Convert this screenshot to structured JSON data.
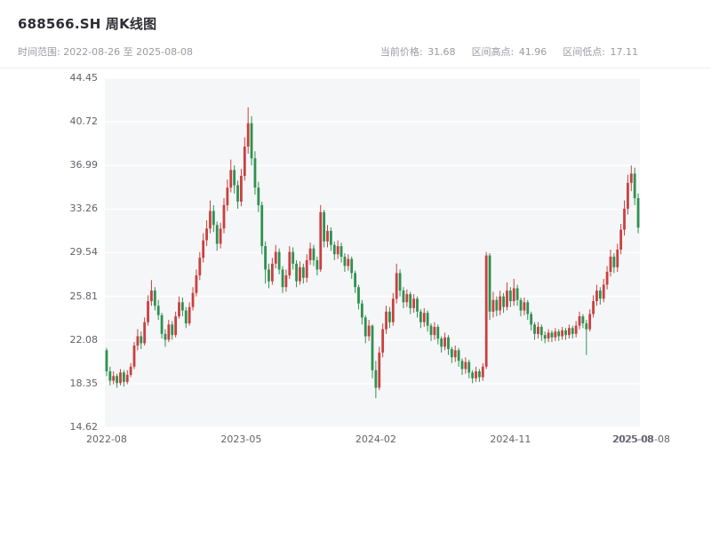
{
  "header": {
    "title": "688566.SH 周K线图",
    "subtitle": "时间范围: 2022-08-26 至 2025-08-08",
    "stats": [
      {
        "label": "当前价格:",
        "value": "31.68"
      },
      {
        "label": "区间高点:",
        "value": "41.96"
      },
      {
        "label": "区间低点:",
        "value": "17.11"
      }
    ]
  },
  "chart_data": {
    "type": "candlestick",
    "title": "688566.SH 周K线图",
    "period": "weekly",
    "date_range": {
      "start": "2022-08-26",
      "end": "2025-08-08"
    },
    "current_price": 31.68,
    "range_high": 41.96,
    "range_low": 17.11,
    "ylim": [
      14.62,
      44.45
    ],
    "y_ticks": [
      "44.45",
      "40.72",
      "36.99",
      "33.26",
      "29.54",
      "25.81",
      "22.08",
      "18.35",
      "14.62"
    ],
    "x_ticks": [
      {
        "pos": 0,
        "label": "2022-08"
      },
      {
        "pos": 39,
        "label": "2023-05"
      },
      {
        "pos": 78,
        "label": "2024-02"
      },
      {
        "pos": 117,
        "label": "2024-11"
      },
      {
        "pos": 156,
        "label": "2025-08"
      }
    ],
    "x_end_label": "2025-08-08",
    "grid": "horizontal",
    "legend": "none",
    "colors": {
      "up": "#c9403f",
      "down": "#2f9150",
      "plot_bg": "#f5f6f8",
      "grid": "#ffffff"
    },
    "candle_format": [
      "open",
      "high",
      "low",
      "close"
    ],
    "candles": [
      [
        21.2,
        21.4,
        19.0,
        19.4
      ],
      [
        19.4,
        19.8,
        18.2,
        18.6
      ],
      [
        18.6,
        19.4,
        18.3,
        19.0
      ],
      [
        19.0,
        19.2,
        18.0,
        18.4
      ],
      [
        18.4,
        19.6,
        18.2,
        19.3
      ],
      [
        19.3,
        19.5,
        18.1,
        18.5
      ],
      [
        18.5,
        19.5,
        18.3,
        19.1
      ],
      [
        19.1,
        20.1,
        18.9,
        19.8
      ],
      [
        19.8,
        21.9,
        19.6,
        21.6
      ],
      [
        21.6,
        23.0,
        21.2,
        22.4
      ],
      [
        22.4,
        22.8,
        21.3,
        21.8
      ],
      [
        21.8,
        24.0,
        21.6,
        23.6
      ],
      [
        23.6,
        25.9,
        23.3,
        25.4
      ],
      [
        25.4,
        27.2,
        25.0,
        26.3
      ],
      [
        26.3,
        26.6,
        24.6,
        25.0
      ],
      [
        25.0,
        25.5,
        23.8,
        24.2
      ],
      [
        24.2,
        24.4,
        22.2,
        22.6
      ],
      [
        22.6,
        23.0,
        21.5,
        22.1
      ],
      [
        22.1,
        23.8,
        21.9,
        23.4
      ],
      [
        23.4,
        23.7,
        22.1,
        22.5
      ],
      [
        22.5,
        24.5,
        22.3,
        24.1
      ],
      [
        24.1,
        25.8,
        23.9,
        25.3
      ],
      [
        25.3,
        25.7,
        24.1,
        24.6
      ],
      [
        24.6,
        24.9,
        23.1,
        23.5
      ],
      [
        23.5,
        25.3,
        23.3,
        24.9
      ],
      [
        24.9,
        26.6,
        24.6,
        26.1
      ],
      [
        26.1,
        28.1,
        25.8,
        27.6
      ],
      [
        27.6,
        29.6,
        27.2,
        29.1
      ],
      [
        29.1,
        31.2,
        28.7,
        30.6
      ],
      [
        30.6,
        32.3,
        30.1,
        31.6
      ],
      [
        31.6,
        34.0,
        31.2,
        33.1
      ],
      [
        33.1,
        33.6,
        31.3,
        31.9
      ],
      [
        31.9,
        32.2,
        29.7,
        30.3
      ],
      [
        30.3,
        32.1,
        29.9,
        31.6
      ],
      [
        31.6,
        34.2,
        31.2,
        33.6
      ],
      [
        33.6,
        35.8,
        33.1,
        35.1
      ],
      [
        35.1,
        37.5,
        34.7,
        36.6
      ],
      [
        36.6,
        37.0,
        34.6,
        35.3
      ],
      [
        35.3,
        35.7,
        33.3,
        33.9
      ],
      [
        33.9,
        36.7,
        33.5,
        36.1
      ],
      [
        36.1,
        39.4,
        35.7,
        38.6
      ],
      [
        38.6,
        41.96,
        38.0,
        40.6
      ],
      [
        40.6,
        41.2,
        37.0,
        37.6
      ],
      [
        37.6,
        38.2,
        34.5,
        35.1
      ],
      [
        35.1,
        35.6,
        33.0,
        33.6
      ],
      [
        33.6,
        33.9,
        29.4,
        30.1
      ],
      [
        30.1,
        30.5,
        26.9,
        28.1
      ],
      [
        28.1,
        28.6,
        26.5,
        27.1
      ],
      [
        27.1,
        29.1,
        26.8,
        28.6
      ],
      [
        28.6,
        30.2,
        28.2,
        29.6
      ],
      [
        29.6,
        29.9,
        27.7,
        28.1
      ],
      [
        28.1,
        28.4,
        26.1,
        26.6
      ],
      [
        26.6,
        28.1,
        26.2,
        27.6
      ],
      [
        27.6,
        30.1,
        27.3,
        29.6
      ],
      [
        29.6,
        30.0,
        28.1,
        28.6
      ],
      [
        28.6,
        28.9,
        26.6,
        27.1
      ],
      [
        27.1,
        28.8,
        26.8,
        28.3
      ],
      [
        28.3,
        28.6,
        26.9,
        27.4
      ],
      [
        27.4,
        29.4,
        27.0,
        28.9
      ],
      [
        28.9,
        30.4,
        28.5,
        29.9
      ],
      [
        29.9,
        30.2,
        28.4,
        28.9
      ],
      [
        28.9,
        29.2,
        27.6,
        28.1
      ],
      [
        28.1,
        33.6,
        27.9,
        33.0
      ],
      [
        33.0,
        33.2,
        30.0,
        30.5
      ],
      [
        30.5,
        31.9,
        30.0,
        31.4
      ],
      [
        31.4,
        31.7,
        29.7,
        30.2
      ],
      [
        30.2,
        30.5,
        28.9,
        29.4
      ],
      [
        29.4,
        30.6,
        29.0,
        30.1
      ],
      [
        30.1,
        30.4,
        28.7,
        29.2
      ],
      [
        29.2,
        29.5,
        27.9,
        28.4
      ],
      [
        28.4,
        29.4,
        28.0,
        29.0
      ],
      [
        29.0,
        29.2,
        27.3,
        27.8
      ],
      [
        27.8,
        28.0,
        26.1,
        26.6
      ],
      [
        26.6,
        26.8,
        24.7,
        25.2
      ],
      [
        25.2,
        25.5,
        23.4,
        24.0
      ],
      [
        24.0,
        24.2,
        21.8,
        22.4
      ],
      [
        22.4,
        23.8,
        22.0,
        23.3
      ],
      [
        23.3,
        23.4,
        18.8,
        19.5
      ],
      [
        19.5,
        20.3,
        17.11,
        18.0
      ],
      [
        18.0,
        21.5,
        17.8,
        21.0
      ],
      [
        21.0,
        23.5,
        20.6,
        23.0
      ],
      [
        23.0,
        25.0,
        22.6,
        24.5
      ],
      [
        24.5,
        24.9,
        23.1,
        23.6
      ],
      [
        23.6,
        26.1,
        23.3,
        25.6
      ],
      [
        25.6,
        28.6,
        25.2,
        27.8
      ],
      [
        27.8,
        28.1,
        25.8,
        26.3
      ],
      [
        26.3,
        26.6,
        24.8,
        25.3
      ],
      [
        25.3,
        26.4,
        24.9,
        26.0
      ],
      [
        26.0,
        26.2,
        24.3,
        24.8
      ],
      [
        24.8,
        26.0,
        24.4,
        25.6
      ],
      [
        25.6,
        25.8,
        24.0,
        24.5
      ],
      [
        24.5,
        24.7,
        23.1,
        23.6
      ],
      [
        23.6,
        24.8,
        23.2,
        24.4
      ],
      [
        24.4,
        24.6,
        22.8,
        23.3
      ],
      [
        23.3,
        23.5,
        22.0,
        22.5
      ],
      [
        22.5,
        23.6,
        22.1,
        23.2
      ],
      [
        23.2,
        23.4,
        21.7,
        22.2
      ],
      [
        22.2,
        22.4,
        21.0,
        21.5
      ],
      [
        21.5,
        22.7,
        21.2,
        22.3
      ],
      [
        22.3,
        22.5,
        20.8,
        21.3
      ],
      [
        21.3,
        21.5,
        20.1,
        20.6
      ],
      [
        20.6,
        21.6,
        20.2,
        21.2
      ],
      [
        21.2,
        21.4,
        19.8,
        20.3
      ],
      [
        20.3,
        20.5,
        19.1,
        19.6
      ],
      [
        19.6,
        20.6,
        19.2,
        20.2
      ],
      [
        20.2,
        20.4,
        18.8,
        19.3
      ],
      [
        19.3,
        19.5,
        18.4,
        18.8
      ],
      [
        18.8,
        19.8,
        18.5,
        19.4
      ],
      [
        19.4,
        19.6,
        18.5,
        18.9
      ],
      [
        18.9,
        20.1,
        18.6,
        19.8
      ],
      [
        19.8,
        29.6,
        19.6,
        29.3
      ],
      [
        29.3,
        29.5,
        23.8,
        24.5
      ],
      [
        24.5,
        26.2,
        24.0,
        25.5
      ],
      [
        25.5,
        25.8,
        24.1,
        24.6
      ],
      [
        24.6,
        26.3,
        24.2,
        25.8
      ],
      [
        25.8,
        26.1,
        24.4,
        24.9
      ],
      [
        24.9,
        27.0,
        24.6,
        26.3
      ],
      [
        26.3,
        26.6,
        24.9,
        25.4
      ],
      [
        25.4,
        27.3,
        25.0,
        26.5
      ],
      [
        26.5,
        26.8,
        25.0,
        25.5
      ],
      [
        25.5,
        25.7,
        24.1,
        24.6
      ],
      [
        24.6,
        25.7,
        24.2,
        25.3
      ],
      [
        25.3,
        25.5,
        23.8,
        24.3
      ],
      [
        24.3,
        24.5,
        22.9,
        23.4
      ],
      [
        23.4,
        23.6,
        22.1,
        22.6
      ],
      [
        22.6,
        23.6,
        22.2,
        23.2
      ],
      [
        23.2,
        23.4,
        22.0,
        22.5
      ],
      [
        22.5,
        22.8,
        21.8,
        22.2
      ],
      [
        22.2,
        23.0,
        21.9,
        22.7
      ],
      [
        22.7,
        22.9,
        21.9,
        22.3
      ],
      [
        22.3,
        23.1,
        22.0,
        22.8
      ],
      [
        22.8,
        23.0,
        22.0,
        22.4
      ],
      [
        22.4,
        23.2,
        22.1,
        22.9
      ],
      [
        22.9,
        23.1,
        22.1,
        22.5
      ],
      [
        22.5,
        23.4,
        22.2,
        23.1
      ],
      [
        23.1,
        23.3,
        22.2,
        22.6
      ],
      [
        22.6,
        23.7,
        22.3,
        23.3
      ],
      [
        23.3,
        24.5,
        23.0,
        24.1
      ],
      [
        24.1,
        24.3,
        23.1,
        23.5
      ],
      [
        23.5,
        23.8,
        20.8,
        23.0
      ],
      [
        23.0,
        24.7,
        22.8,
        24.3
      ],
      [
        24.3,
        25.9,
        24.0,
        25.4
      ],
      [
        25.4,
        26.8,
        25.0,
        26.3
      ],
      [
        26.3,
        26.6,
        25.1,
        25.6
      ],
      [
        25.6,
        27.3,
        25.3,
        26.8
      ],
      [
        26.8,
        28.4,
        26.4,
        27.9
      ],
      [
        27.9,
        29.8,
        27.5,
        29.2
      ],
      [
        29.2,
        29.5,
        27.8,
        28.3
      ],
      [
        28.3,
        30.3,
        27.9,
        29.8
      ],
      [
        29.8,
        32.0,
        29.4,
        31.5
      ],
      [
        31.5,
        34.0,
        31.0,
        33.3
      ],
      [
        33.3,
        36.2,
        32.8,
        35.5
      ],
      [
        35.5,
        36.99,
        34.8,
        36.3
      ],
      [
        36.3,
        36.8,
        33.6,
        34.2
      ],
      [
        34.2,
        34.6,
        31.2,
        31.68
      ]
    ]
  }
}
